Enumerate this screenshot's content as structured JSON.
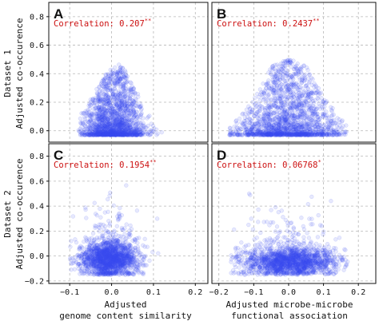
{
  "figure": {
    "row_labels": [
      {
        "dataset": "Dataset 1",
        "ylabel": "Adjusted co-occurence"
      },
      {
        "dataset": "Dataset 2",
        "ylabel": "Adjusted co-occurence"
      }
    ],
    "col_xlabels": [
      [
        "Adjusted",
        "genome content similarity"
      ],
      [
        "Adjusted microbe-microbe",
        "functional association"
      ]
    ],
    "point_color": "#3b4cf0",
    "annotation_color": "#cc1010",
    "grid": "dashed"
  },
  "chart_data": [
    {
      "type": "scatter",
      "panel": "A",
      "annotation": "Correlation: 0.207",
      "significance": "**",
      "xlim": [
        -0.15,
        0.23
      ],
      "ylim": [
        -0.08,
        0.9
      ],
      "x_ticks": [
        -0.1,
        0.0,
        0.1,
        0.2
      ],
      "y_ticks": [
        0.0,
        0.2,
        0.4,
        0.6,
        0.8
      ],
      "x_tick_labels": [
        "−0.1",
        "0.0",
        "0.1",
        "0.2"
      ],
      "y_tick_labels": [
        "0.0",
        "0.2",
        "0.4",
        "0.6",
        "0.8"
      ],
      "xlabel": "Adjusted genome content similarity",
      "ylabel": "Adjusted co-occurence",
      "cloud": {
        "cx": 0.005,
        "sx": 0.035,
        "xmin": -0.08,
        "xmax": 0.12,
        "floor": -0.03,
        "upper_edge": [
          [
            -0.08,
            0.08
          ],
          [
            -0.04,
            0.25
          ],
          [
            -0.01,
            0.38
          ],
          [
            0.02,
            0.45
          ],
          [
            0.05,
            0.3
          ],
          [
            0.08,
            0.15
          ],
          [
            0.12,
            0.0
          ]
        ]
      }
    },
    {
      "type": "scatter",
      "panel": "B",
      "annotation": "Correlation: 0.2437",
      "significance": "**",
      "xlim": [
        -0.22,
        0.25
      ],
      "ylim": [
        -0.08,
        0.9
      ],
      "x_ticks": [
        -0.2,
        -0.1,
        0.0,
        0.1,
        0.2
      ],
      "y_ticks": [
        0.0,
        0.2,
        0.4,
        0.6,
        0.8
      ],
      "x_tick_labels": [
        "−0.2",
        "−0.1",
        "0.0",
        "0.1",
        "0.2"
      ],
      "y_tick_labels": [
        "0.0",
        "0.2",
        "0.4",
        "0.6",
        "0.8"
      ],
      "xlabel": "Adjusted microbe-microbe functional association",
      "ylabel": "Adjusted co-occurence",
      "cloud": {
        "cx": 0.0,
        "sx": 0.07,
        "xmin": -0.17,
        "xmax": 0.17,
        "floor": -0.03,
        "upper_edge": [
          [
            -0.17,
            0.02
          ],
          [
            -0.1,
            0.2
          ],
          [
            -0.05,
            0.42
          ],
          [
            0.0,
            0.47
          ],
          [
            0.05,
            0.42
          ],
          [
            0.1,
            0.22
          ],
          [
            0.17,
            0.02
          ]
        ]
      }
    },
    {
      "type": "scatter",
      "panel": "C",
      "annotation": "Correlation: 0.1954",
      "significance": "**",
      "xlim": [
        -0.15,
        0.23
      ],
      "ylim": [
        -0.22,
        0.9
      ],
      "x_ticks": [
        -0.1,
        0.0,
        0.1,
        0.2
      ],
      "y_ticks": [
        -0.2,
        0.0,
        0.2,
        0.4,
        0.6,
        0.8
      ],
      "x_tick_labels": [
        "−0.1",
        "0.0",
        "0.1",
        "0.2"
      ],
      "y_tick_labels": [
        "−0.2",
        "0.0",
        "0.2",
        "0.4",
        "0.6",
        "0.8"
      ],
      "xlabel": "Adjusted genome content similarity",
      "ylabel": "Adjusted co-occurence",
      "cloud": {
        "cx": -0.005,
        "sx": 0.035,
        "cy": -0.03,
        "sy": 0.07,
        "xmin": -0.1,
        "xmax": 0.13,
        "ymin": -0.15,
        "ymax": 0.6
      }
    },
    {
      "type": "scatter",
      "panel": "D",
      "annotation": "Correlation: 0.06768",
      "significance": "*",
      "xlim": [
        -0.22,
        0.25
      ],
      "ylim": [
        -0.22,
        0.9
      ],
      "x_ticks": [
        -0.2,
        -0.1,
        0.0,
        0.1,
        0.2
      ],
      "y_ticks": [
        -0.2,
        0.0,
        0.2,
        0.4,
        0.6,
        0.8
      ],
      "x_tick_labels": [
        "−0.2",
        "−0.1",
        "0.0",
        "0.1",
        "0.2"
      ],
      "y_tick_labels": [
        "−0.2",
        "0.0",
        "0.2",
        "0.4",
        "0.6",
        "0.8"
      ],
      "xlabel": "Adjusted microbe-microbe functional association",
      "ylabel": "Adjusted co-occurence",
      "cloud": {
        "cx": 0.0,
        "sx": 0.07,
        "cy": -0.05,
        "sy": 0.06,
        "xmin": -0.17,
        "xmax": 0.17,
        "ymin": -0.15,
        "ymax": 0.6
      }
    }
  ]
}
